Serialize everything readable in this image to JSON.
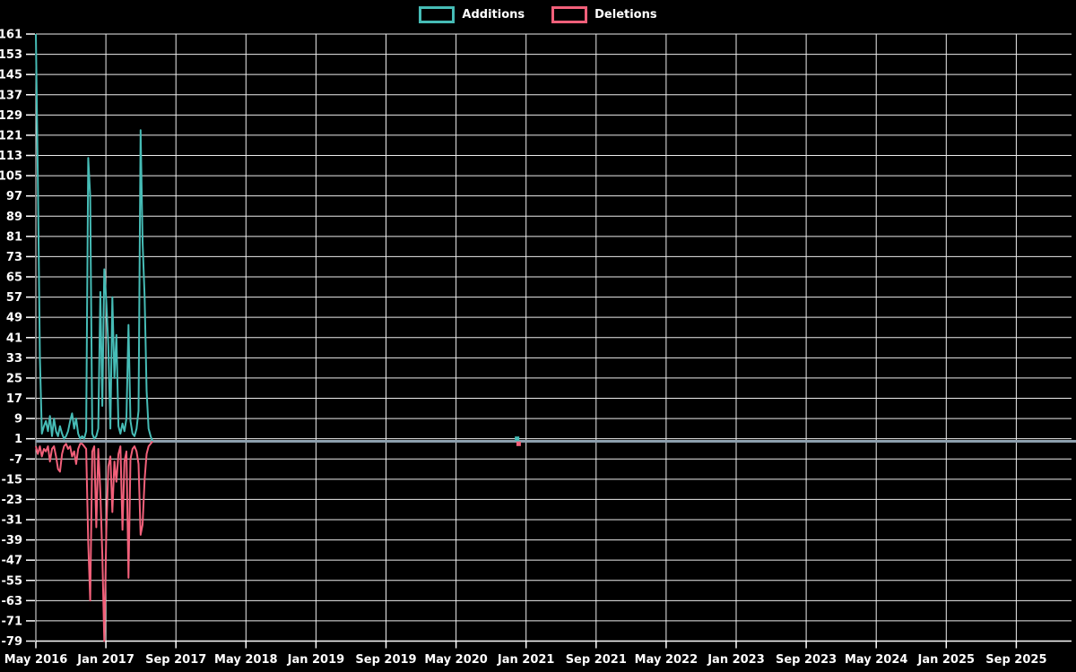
{
  "chart_data": {
    "type": "line",
    "title": "",
    "background_color": "#000000",
    "grid_color": "#ededed",
    "baseline_color": "#8c9fad",
    "text_color": "#ffffff",
    "legend_position": "top-center",
    "grid": "on",
    "x_axis": {
      "unit": "months_since_May_2016",
      "months_between_ticks": 8,
      "tick_labels": [
        "May 2016",
        "Jan 2017",
        "Sep 2017",
        "May 2018",
        "Jan 2019",
        "Sep 2019",
        "May 2020",
        "Jan 2021",
        "Sep 2021",
        "May 2022",
        "Jan 2023",
        "Sep 2023",
        "May 2024",
        "Jan 2025",
        "Sep 2025"
      ]
    },
    "y_axis": {
      "min": -79,
      "max": 161,
      "step": 8,
      "tick_labels": [
        "161",
        "153",
        "145",
        "137",
        "129",
        "121",
        "113",
        "105",
        "97",
        "89",
        "81",
        "73",
        "65",
        "57",
        "49",
        "41",
        "33",
        "25",
        "17",
        "9",
        "1",
        "-7",
        "-15",
        "-23",
        "-31",
        "-39",
        "-47",
        "-55",
        "-63",
        "-71",
        "-79"
      ]
    },
    "series": [
      {
        "name": "Additions",
        "color": "#46bcb6",
        "points": [
          [
            0,
            161
          ],
          [
            0.23,
            104
          ],
          [
            0.46,
            33
          ],
          [
            0.69,
            3
          ],
          [
            0.92,
            6
          ],
          [
            1.15,
            8
          ],
          [
            1.38,
            4
          ],
          [
            1.61,
            10
          ],
          [
            1.84,
            2
          ],
          [
            2.07,
            9
          ],
          [
            2.3,
            4
          ],
          [
            2.53,
            2
          ],
          [
            2.76,
            6
          ],
          [
            2.99,
            3
          ],
          [
            3.22,
            1
          ],
          [
            3.45,
            2
          ],
          [
            3.68,
            4
          ],
          [
            3.91,
            8
          ],
          [
            4.14,
            11
          ],
          [
            4.37,
            5
          ],
          [
            4.6,
            9
          ],
          [
            4.83,
            3
          ],
          [
            5.06,
            1
          ],
          [
            5.29,
            2
          ],
          [
            5.52,
            1
          ],
          [
            5.75,
            4
          ],
          [
            5.98,
            112
          ],
          [
            6.21,
            97
          ],
          [
            6.44,
            3
          ],
          [
            6.67,
            1
          ],
          [
            6.9,
            2
          ],
          [
            7.13,
            5
          ],
          [
            7.36,
            59
          ],
          [
            7.59,
            14
          ],
          [
            7.82,
            68
          ],
          [
            8.05,
            55
          ],
          [
            8.28,
            38
          ],
          [
            8.51,
            5
          ],
          [
            8.74,
            57
          ],
          [
            8.97,
            25
          ],
          [
            9.2,
            42
          ],
          [
            9.43,
            6
          ],
          [
            9.66,
            3
          ],
          [
            9.89,
            7
          ],
          [
            10.12,
            4
          ],
          [
            10.35,
            9
          ],
          [
            10.58,
            46
          ],
          [
            10.81,
            8
          ],
          [
            11.04,
            3
          ],
          [
            11.27,
            2
          ],
          [
            11.5,
            5
          ],
          [
            11.73,
            12
          ],
          [
            11.96,
            123
          ],
          [
            12.19,
            79
          ],
          [
            12.42,
            57
          ],
          [
            12.65,
            20
          ],
          [
            12.88,
            5
          ],
          [
            13.11,
            2
          ],
          [
            13.34,
            0
          ],
          [
            13.57,
            0
          ]
        ]
      },
      {
        "name": "Deletions",
        "color": "#f2607a",
        "points": [
          [
            0,
            -2
          ],
          [
            0.23,
            -5
          ],
          [
            0.46,
            -2
          ],
          [
            0.69,
            -6
          ],
          [
            0.92,
            -3
          ],
          [
            1.15,
            -4
          ],
          [
            1.38,
            -2
          ],
          [
            1.61,
            -8
          ],
          [
            1.84,
            -3
          ],
          [
            2.07,
            -2
          ],
          [
            2.3,
            -6
          ],
          [
            2.53,
            -11
          ],
          [
            2.76,
            -12
          ],
          [
            2.99,
            -5
          ],
          [
            3.22,
            -2
          ],
          [
            3.45,
            -1
          ],
          [
            3.68,
            -3
          ],
          [
            3.91,
            -2
          ],
          [
            4.14,
            -6
          ],
          [
            4.37,
            -4
          ],
          [
            4.6,
            -9
          ],
          [
            4.83,
            -3
          ],
          [
            5.06,
            -1
          ],
          [
            5.29,
            -1
          ],
          [
            5.52,
            -2
          ],
          [
            5.75,
            -3
          ],
          [
            5.98,
            -40
          ],
          [
            6.21,
            -63
          ],
          [
            6.44,
            -4
          ],
          [
            6.67,
            -2
          ],
          [
            6.9,
            -34
          ],
          [
            7.13,
            -3
          ],
          [
            7.36,
            -20
          ],
          [
            7.59,
            -45
          ],
          [
            7.82,
            -79
          ],
          [
            8.05,
            -35
          ],
          [
            8.28,
            -10
          ],
          [
            8.51,
            -6
          ],
          [
            8.74,
            -28
          ],
          [
            8.97,
            -8
          ],
          [
            9.2,
            -16
          ],
          [
            9.43,
            -5
          ],
          [
            9.66,
            -2
          ],
          [
            9.89,
            -35
          ],
          [
            10.12,
            -8
          ],
          [
            10.35,
            -4
          ],
          [
            10.58,
            -54
          ],
          [
            10.81,
            -7
          ],
          [
            11.04,
            -3
          ],
          [
            11.27,
            -2
          ],
          [
            11.5,
            -4
          ],
          [
            11.73,
            -9
          ],
          [
            11.96,
            -37
          ],
          [
            12.19,
            -33
          ],
          [
            12.42,
            -15
          ],
          [
            12.65,
            -5
          ],
          [
            12.88,
            -2
          ],
          [
            13.11,
            -1
          ],
          [
            13.34,
            0
          ],
          [
            13.57,
            0
          ]
        ]
      }
    ],
    "isolated_points": [
      {
        "series": "Additions",
        "x_months": 54.97,
        "value": 1
      },
      {
        "series": "Deletions",
        "x_months": 55.15,
        "value": -1
      }
    ]
  },
  "legend": {
    "items": [
      {
        "label": "Additions"
      },
      {
        "label": "Deletions"
      }
    ]
  }
}
